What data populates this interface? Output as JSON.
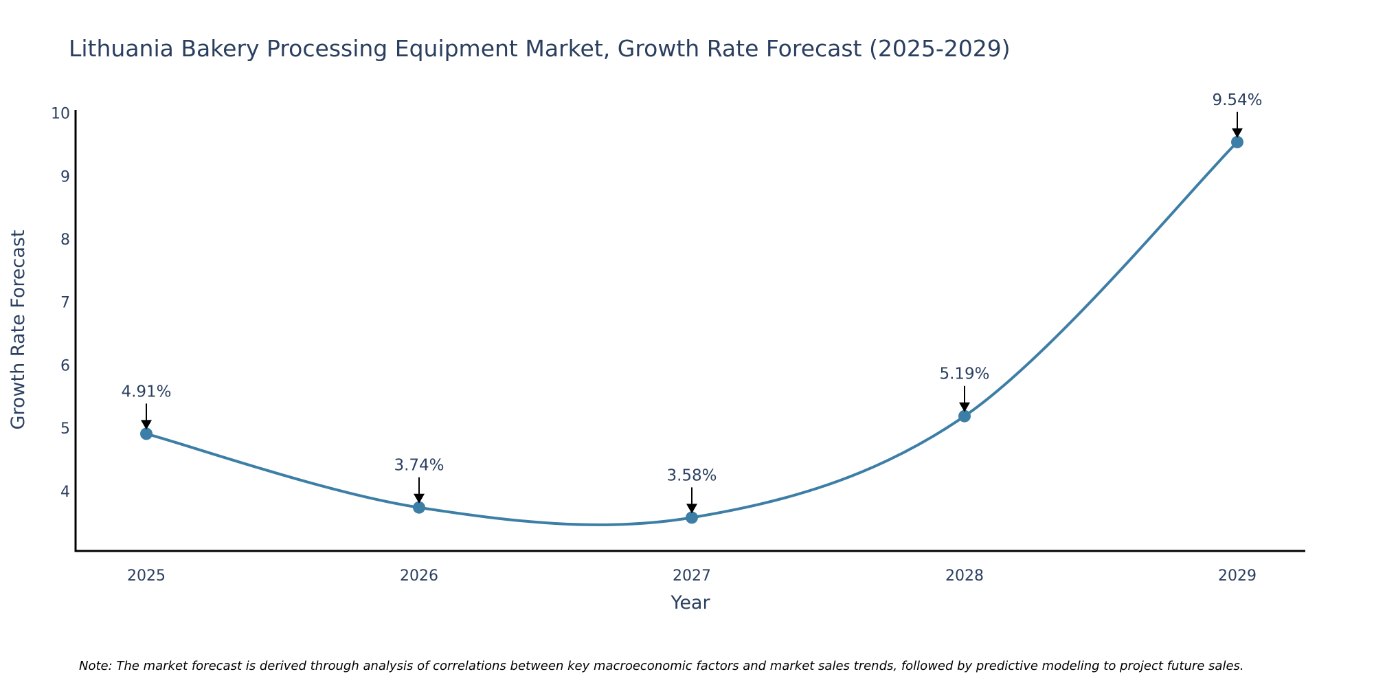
{
  "chart_data": {
    "type": "line",
    "title": "Lithuania Bakery Processing Equipment Market, Growth Rate Forecast (2025-2029)",
    "xlabel": "Year",
    "ylabel": "Growth Rate Forecast",
    "categories": [
      "2025",
      "2026",
      "2027",
      "2028",
      "2029"
    ],
    "series": [
      {
        "name": "Growth Rate Forecast",
        "values": [
          4.91,
          3.74,
          3.58,
          5.19,
          9.54
        ],
        "labels": [
          "4.91%",
          "3.74%",
          "3.58%",
          "5.19%",
          "9.54%"
        ],
        "color": "#3d7ea6",
        "line_shape": "spline",
        "markers": true
      }
    ],
    "yticks": [
      4,
      5,
      6,
      7,
      8,
      9,
      10
    ],
    "ylim": [
      3.05,
      10.05
    ],
    "grid": false,
    "legend": "none",
    "annotations": {
      "arrow_color": "#000000"
    },
    "note": "Note: The market forecast is derived through analysis of correlations between key macroeconomic factors and market sales trends, followed by predictive modeling to project future sales."
  }
}
